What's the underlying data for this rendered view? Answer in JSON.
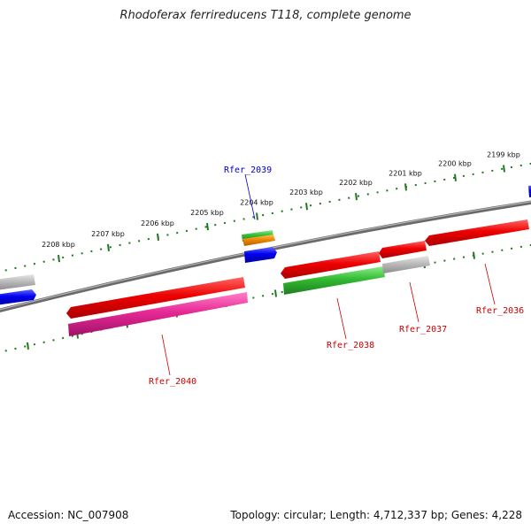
{
  "title": "Rhodoferax ferrireducens T118, complete genome",
  "footer": {
    "accession": "Accession: NC_007908",
    "summary": "Topology: circular; Length: 4,712,337 bp; Genes: 4,228"
  },
  "ticks": [
    {
      "label": "2199 kbp"
    },
    {
      "label": "2200 kbp"
    },
    {
      "label": "2201 kbp"
    },
    {
      "label": "2202 kbp"
    },
    {
      "label": "2203 kbp"
    },
    {
      "label": "2204 kbp"
    },
    {
      "label": "2205 kbp"
    },
    {
      "label": "2206 kbp"
    },
    {
      "label": "2207 kbp"
    },
    {
      "label": "2208 kbp"
    }
  ],
  "gene_labels": [
    {
      "name": "Rfer_2039",
      "color": "#0000cc"
    },
    {
      "name": "Rfer_2036",
      "color": "#cc0000"
    },
    {
      "name": "Rfer_2037",
      "color": "#cc0000"
    },
    {
      "name": "Rfer_2038",
      "color": "#cc0000"
    },
    {
      "name": "Rfer_2040",
      "color": "#cc0000"
    }
  ],
  "colors": {
    "backbone": "#7f7f7f",
    "tick": "#1f7a1f",
    "cds_red": "#ee0000",
    "cds_pink": "#ee2a9a",
    "cds_green": "#33bb33",
    "cds_blue": "#0000ee",
    "cds_gray": "#bbbbbb",
    "cds_orange": "#ee8800"
  }
}
